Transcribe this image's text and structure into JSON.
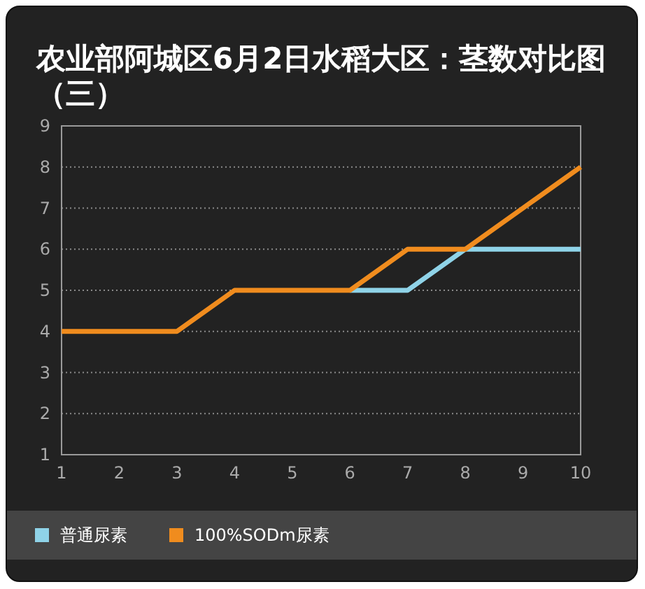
{
  "chart_data": {
    "type": "line",
    "title": "农业部阿城区6月2日水稻大区：茎数对比图（三）",
    "x": [
      1,
      2,
      3,
      4,
      5,
      6,
      7,
      8,
      9,
      10
    ],
    "xlim": [
      1,
      10
    ],
    "xticks": [
      1,
      2,
      3,
      4,
      5,
      6,
      7,
      8,
      9,
      10
    ],
    "ylim": [
      1,
      9
    ],
    "yticks": [
      1,
      2,
      3,
      4,
      5,
      6,
      7,
      8,
      9
    ],
    "grid": "y",
    "legend": "bottom",
    "line_style": "solid",
    "series": [
      {
        "name": "普通尿素",
        "color": "#8fd3e8",
        "values": [
          null,
          null,
          null,
          null,
          null,
          5,
          5,
          6,
          6,
          6
        ]
      },
      {
        "name": "100%SODm尿素",
        "color": "#f08c1e",
        "values": [
          4,
          4,
          4,
          5,
          5,
          5,
          6,
          6,
          7,
          8
        ]
      }
    ]
  }
}
